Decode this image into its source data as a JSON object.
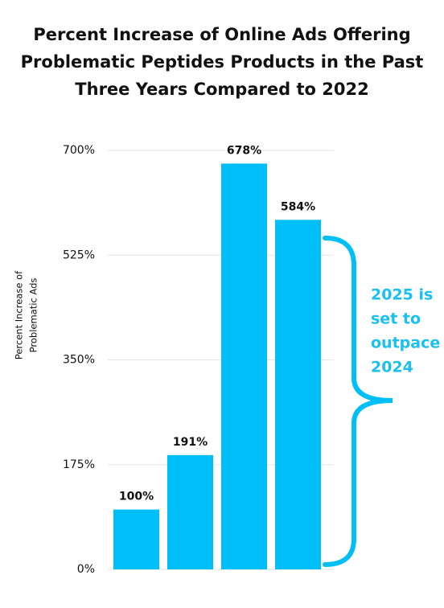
{
  "chart_data": {
    "type": "bar",
    "title": [
      "Percent Increase of Online Ads Offering",
      "Problematic Peptides Products in the Past",
      "Three Years Compared to 2022"
    ],
    "y_label": [
      "Percent Increase of",
      "Problematic Ads"
    ],
    "categories": [
      null,
      null,
      null,
      null
    ],
    "values": [
      100,
      191,
      678,
      584
    ],
    "value_labels": [
      "100%",
      "191%",
      "678%",
      "584%"
    ],
    "color": "#00bff8",
    "ylim": [
      0,
      700
    ],
    "yticks": [
      {
        "value": 0,
        "label": "0%"
      },
      {
        "value": 175,
        "label": "175%"
      },
      {
        "value": 350,
        "label": "350%"
      },
      {
        "value": 525,
        "label": "525%"
      },
      {
        "value": 700,
        "label": "700%"
      }
    ],
    "grid": true,
    "annotation": [
      "2025 is",
      "set to",
      "outpace",
      "2024"
    ],
    "annotation_color": "#19c0f0"
  }
}
